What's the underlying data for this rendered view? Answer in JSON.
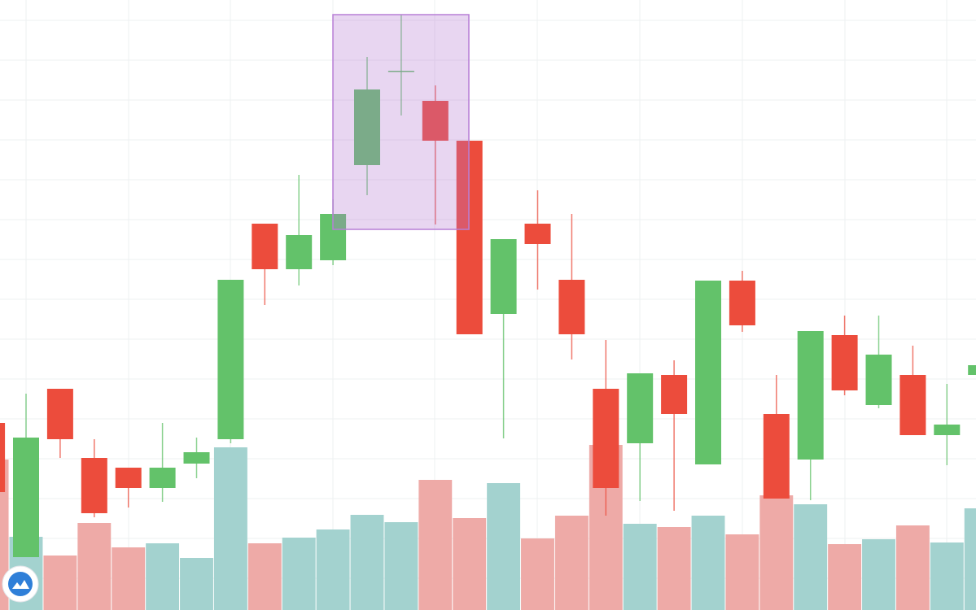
{
  "chart_data": {
    "type": "candlestick",
    "open": [
      230,
      65,
      272,
      187,
      175,
      150,
      180,
      210,
      475,
      419,
      430,
      547,
      663,
      626,
      577,
      364,
      475,
      406,
      272,
      205,
      289,
      179,
      405,
      241,
      185,
      338,
      252,
      289,
      215,
      289
    ],
    "high": [
      230,
      266,
      272,
      210,
      175,
      230,
      212,
      406,
      475,
      535,
      505,
      680,
      732,
      645,
      577,
      456,
      516,
      487,
      332,
      291,
      307,
      405,
      417,
      289,
      343,
      362,
      362,
      325,
      278,
      301
    ],
    "low": [
      145,
      65,
      187,
      114,
      126,
      133,
      162,
      205,
      375,
      399,
      424,
      510,
      608,
      474,
      339,
      211,
      394,
      308,
      116,
      134,
      122,
      179,
      342,
      137,
      135,
      264,
      248,
      215,
      178,
      289
    ],
    "close": [
      145,
      212,
      210,
      119,
      150,
      175,
      194,
      406,
      419,
      461,
      487,
      640,
      663,
      577,
      339,
      456,
      450,
      339,
      150,
      291,
      241,
      405,
      350,
      137,
      343,
      270,
      314,
      215,
      228,
      301
    ],
    "volume": [
      185,
      90,
      67,
      107,
      77,
      82,
      64,
      200,
      82,
      89,
      99,
      117,
      108,
      160,
      113,
      156,
      88,
      116,
      203,
      106,
      102,
      116,
      93,
      141,
      130,
      81,
      87,
      104,
      83,
      125
    ],
    "ylim": [
      0,
      750
    ],
    "volume_lim": [
      0,
      750
    ],
    "yticks": [
      725,
      676,
      627,
      578,
      529,
      480,
      431,
      382,
      333,
      284,
      235,
      186,
      137,
      88,
      39
    ],
    "grid": true,
    "up_color": "#63c26a",
    "down_color": "#ec4c3c",
    "volume_up_color": "#a3d2cf",
    "volume_down_color": "#eeaaa7"
  }
}
